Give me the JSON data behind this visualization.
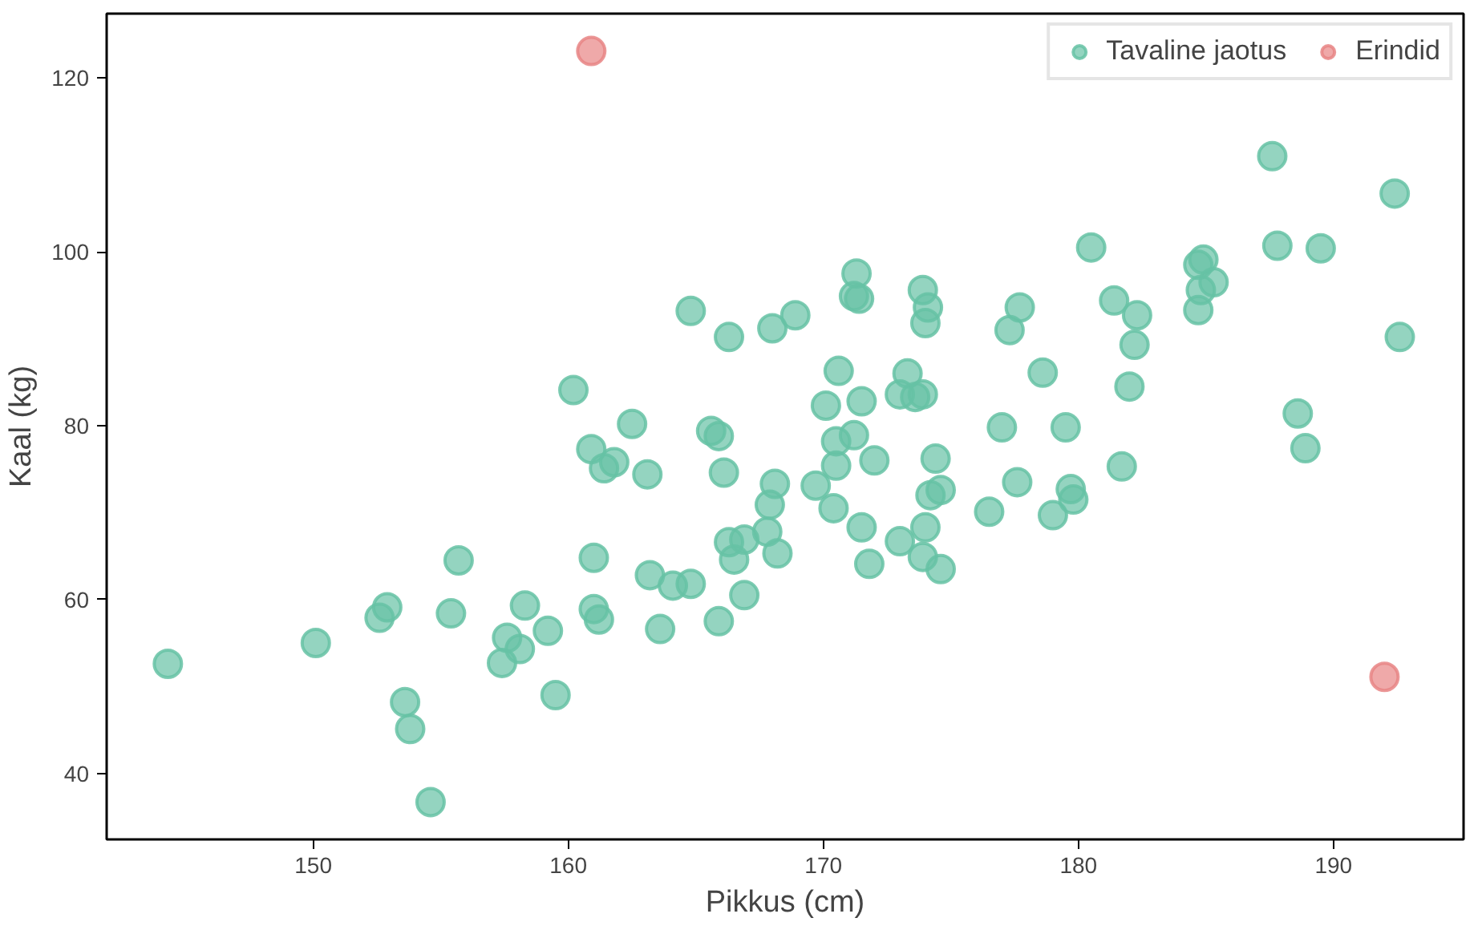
{
  "chart_data": {
    "type": "scatter",
    "xlabel": "Pikkus (cm)",
    "ylabel": "Kaal (kg)",
    "xlim": [
      141.9,
      195.1
    ],
    "ylim": [
      32.4,
      127.4
    ],
    "xticks": [
      150,
      160,
      170,
      180,
      190
    ],
    "yticks": [
      40,
      60,
      80,
      100,
      120
    ],
    "grid": false,
    "legend": "top right",
    "marker": "circle",
    "series": [
      {
        "name": "Tavaline jaotus",
        "color": "#66c2a5",
        "x": [
          144.3,
          150.1,
          152.6,
          152.9,
          153.6,
          153.8,
          154.6,
          155.4,
          155.7,
          157.6,
          157.4,
          158.1,
          158.3,
          159.2,
          159.5,
          160.2,
          160.9,
          161.4,
          161.8,
          162.5,
          163.1,
          161.0,
          161.0,
          161.2,
          163.2,
          164.1,
          164.8,
          163.6,
          165.9,
          166.9,
          164.8,
          166.3,
          168.0,
          165.6,
          165.9,
          166.1,
          168.1,
          167.9,
          167.8,
          166.3,
          166.9,
          166.5,
          168.2,
          187.6,
          192.4,
          180.5,
          187.8,
          189.5,
          184.7,
          184.9,
          185.3,
          184.8,
          184.7,
          192.6,
          181.4,
          182.3,
          182.2,
          177.7,
          177.3,
          171.3,
          171.2,
          171.4,
          173.9,
          174.1,
          174.0,
          168.9,
          170.6,
          170.1,
          171.5,
          173.3,
          173.0,
          173.6,
          173.9,
          178.6,
          182.0,
          188.6,
          188.9,
          177.0,
          179.5,
          171.2,
          170.5,
          172.0,
          174.4,
          174.2,
          174.6,
          181.7,
          177.6,
          169.7,
          170.5,
          170.4,
          171.5,
          173.0,
          174.0,
          173.9,
          174.6,
          171.8,
          176.5,
          179.0,
          179.7,
          179.8
        ],
        "values": [
          52.6,
          55.0,
          57.9,
          59.1,
          48.2,
          45.1,
          36.7,
          58.4,
          64.5,
          55.6,
          52.7,
          54.3,
          59.3,
          56.4,
          49.0,
          84.1,
          77.3,
          75.1,
          75.8,
          80.2,
          74.4,
          64.8,
          58.9,
          57.7,
          62.8,
          61.6,
          61.8,
          56.6,
          57.5,
          60.5,
          93.2,
          90.2,
          91.2,
          79.4,
          78.8,
          74.6,
          73.3,
          70.9,
          67.8,
          66.6,
          66.9,
          64.6,
          65.3,
          111.0,
          106.7,
          100.5,
          100.7,
          100.4,
          98.5,
          99.1,
          96.5,
          95.6,
          93.3,
          90.2,
          94.4,
          92.7,
          89.3,
          93.6,
          91.0,
          97.5,
          94.9,
          94.6,
          95.6,
          93.6,
          91.8,
          92.7,
          86.3,
          82.3,
          82.8,
          86.0,
          83.6,
          83.3,
          83.6,
          86.1,
          84.5,
          81.4,
          77.4,
          79.8,
          79.8,
          78.9,
          78.2,
          76.0,
          76.2,
          72.0,
          72.6,
          75.3,
          73.5,
          73.1,
          75.4,
          70.5,
          68.3,
          66.7,
          68.3,
          64.9,
          63.5,
          64.1,
          70.1,
          69.7,
          72.7,
          71.5
        ]
      },
      {
        "name": "Erindid",
        "color": "#e88585",
        "x": [
          160.9,
          192.0
        ],
        "values": [
          123.1,
          51.1
        ]
      }
    ]
  }
}
